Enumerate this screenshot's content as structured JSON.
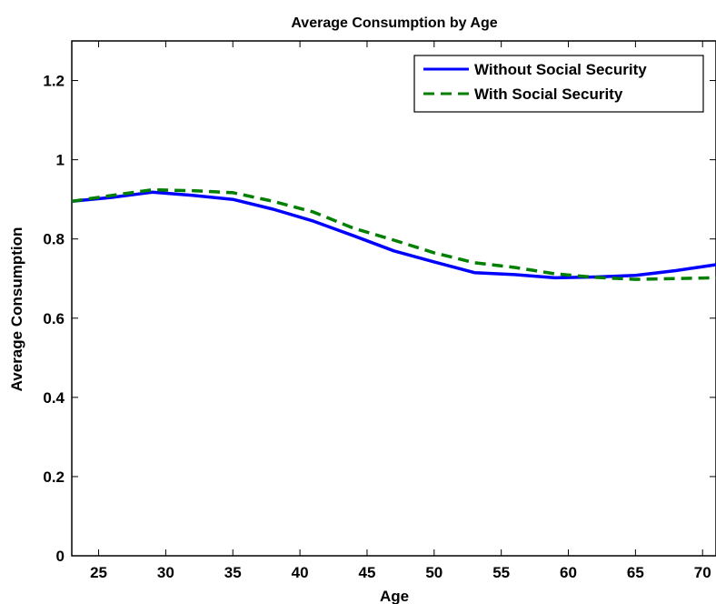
{
  "chart_data": {
    "type": "line",
    "title": "Average Consumption by Age",
    "xlabel": "Age",
    "ylabel": "Average Consumption",
    "xlim": [
      23,
      71
    ],
    "ylim": [
      0,
      1.3
    ],
    "xticks": [
      25,
      30,
      35,
      40,
      45,
      50,
      55,
      60,
      65,
      70
    ],
    "yticks": [
      0,
      0.2,
      0.4,
      0.6,
      0.8,
      1,
      1.2
    ],
    "grid": false,
    "legend_position": "top-right",
    "series": [
      {
        "name": "Without Social Security",
        "color": "#0000ff",
        "style": "solid",
        "x": [
          23,
          26,
          29,
          32,
          35,
          38,
          41,
          44,
          47,
          50,
          53,
          56,
          59,
          62,
          65,
          68,
          71
        ],
        "y": [
          0.895,
          0.905,
          0.918,
          0.91,
          0.9,
          0.875,
          0.845,
          0.808,
          0.77,
          0.742,
          0.715,
          0.71,
          0.702,
          0.704,
          0.708,
          0.72,
          0.735
        ]
      },
      {
        "name": "With Social Security",
        "color": "#007f00",
        "style": "dashed",
        "x": [
          23,
          26,
          29,
          32,
          35,
          38,
          41,
          44,
          47,
          50,
          53,
          56,
          59,
          62,
          65,
          68,
          71
        ],
        "y": [
          0.895,
          0.91,
          0.924,
          0.922,
          0.917,
          0.895,
          0.868,
          0.827,
          0.797,
          0.765,
          0.74,
          0.728,
          0.712,
          0.703,
          0.698,
          0.7,
          0.702
        ]
      }
    ]
  }
}
